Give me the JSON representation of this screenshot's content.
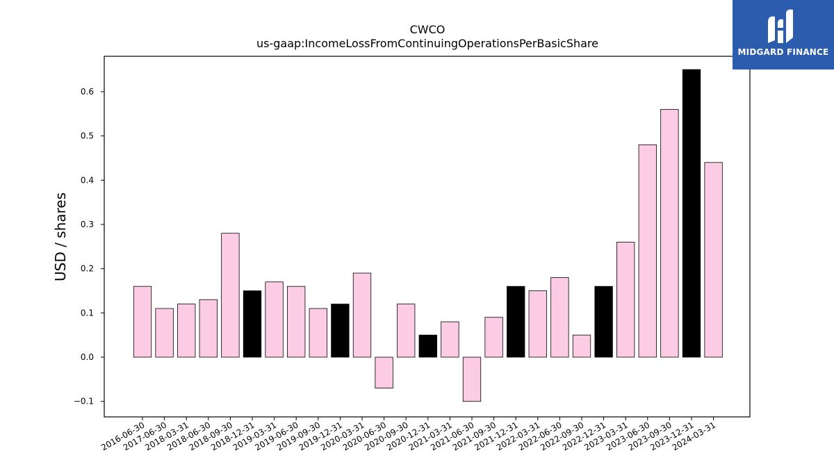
{
  "logo": {
    "text": "MIDGARD FINANCE",
    "background": "#2b5cad"
  },
  "chart_data": {
    "type": "bar",
    "title": "CWCO",
    "subtitle": "us-gaap:IncomeLossFromContinuingOperationsPerBasicShare",
    "xlabel": "",
    "ylabel": "USD / shares",
    "ylim": [
      -0.135,
      0.68
    ],
    "yticks": [
      -0.1,
      0.0,
      0.1,
      0.2,
      0.3,
      0.4,
      0.5,
      0.6
    ],
    "ytick_labels": [
      "−0.1",
      "0.0",
      "0.1",
      "0.2",
      "0.3",
      "0.4",
      "0.5",
      "0.6"
    ],
    "grid": false,
    "categories": [
      "2016-06-30",
      "2017-06-30",
      "2018-03-31",
      "2018-06-30",
      "2018-09-30",
      "2018-12-31",
      "2019-03-31",
      "2019-06-30",
      "2019-09-30",
      "2019-12-31",
      "2020-03-31",
      "2020-06-30",
      "2020-09-30",
      "2020-12-31",
      "2021-03-31",
      "2021-06-30",
      "2021-09-30",
      "2021-12-31",
      "2022-03-31",
      "2022-06-30",
      "2022-09-30",
      "2022-12-31",
      "2023-03-31",
      "2023-06-30",
      "2023-09-30",
      "2023-12-31",
      "2024-03-31"
    ],
    "values": [
      0.16,
      0.11,
      0.12,
      0.13,
      0.28,
      0.15,
      0.17,
      0.16,
      0.11,
      0.12,
      0.19,
      -0.07,
      0.12,
      0.05,
      0.08,
      -0.1,
      0.09,
      0.16,
      0.15,
      0.18,
      0.05,
      0.16,
      0.26,
      0.48,
      0.56,
      0.65,
      0.44
    ],
    "highlighted": [
      false,
      false,
      false,
      false,
      false,
      true,
      false,
      false,
      false,
      true,
      false,
      false,
      false,
      true,
      false,
      false,
      false,
      true,
      false,
      false,
      false,
      true,
      false,
      false,
      false,
      true,
      false
    ],
    "colors": {
      "bar": "#fccbe4",
      "highlight": "#000000",
      "edge": "#000000"
    }
  }
}
